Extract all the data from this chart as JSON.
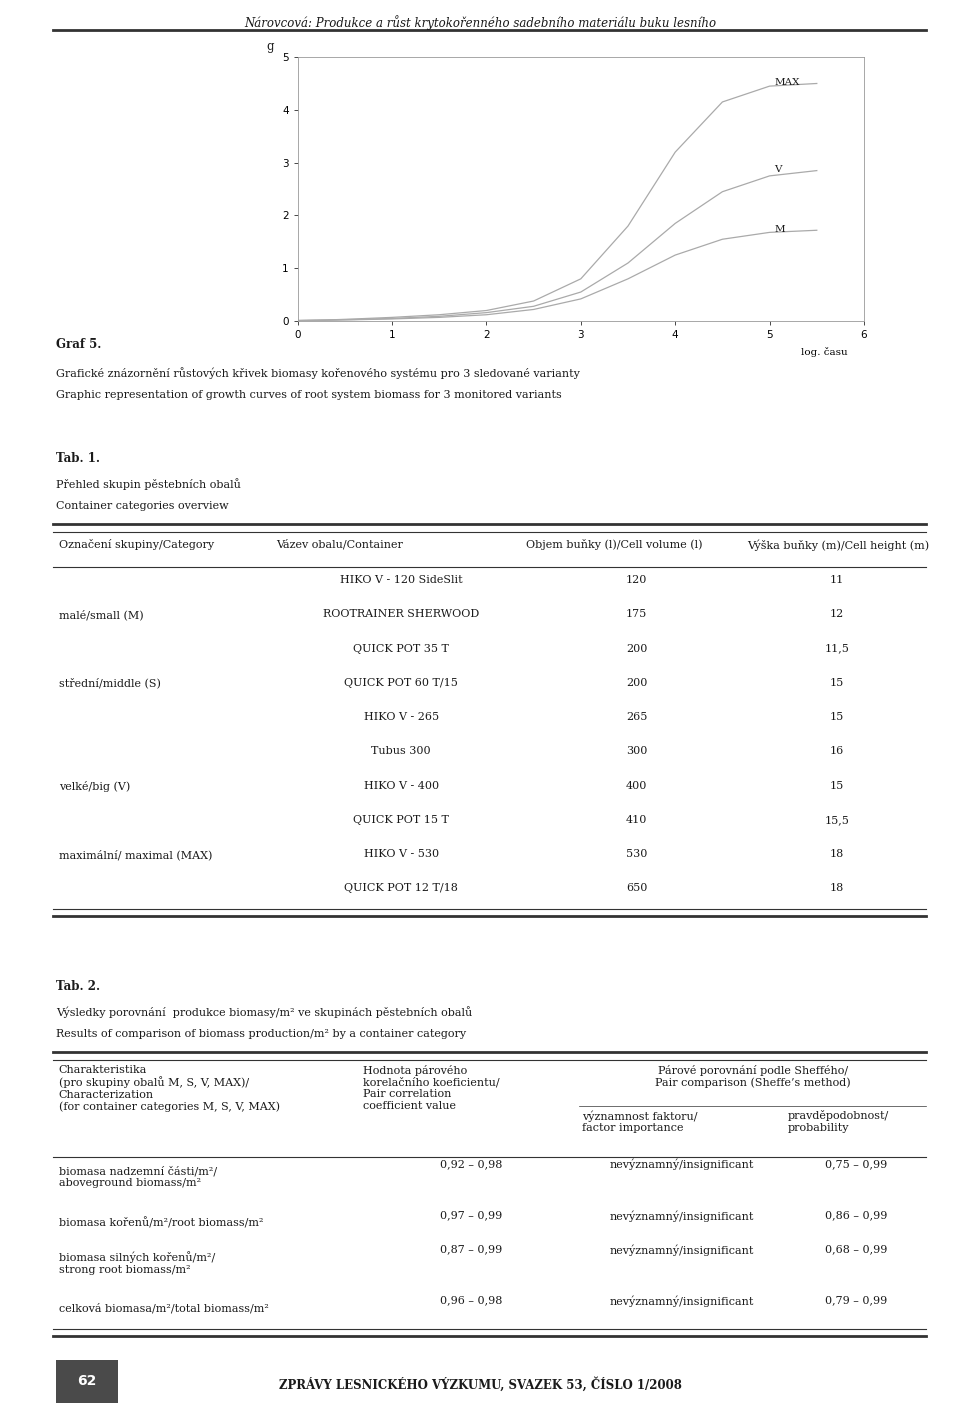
{
  "page_title": "Nárovcová: Produkce a růst krytokořenného sadebního materiálu buku lesního",
  "graf_title": "Graf 5.",
  "graf_caption_cz": "Grafické znázornění růstových křivek biomasy kořenového systému pro 3 sledované varianty",
  "graf_caption_en": "Graphic representation of growth curves of root system biomass for 3 monitored variants",
  "chart_ylabel": "g",
  "chart_xlabel": "log. času",
  "chart_yticks": [
    0,
    1,
    2,
    3,
    4,
    5
  ],
  "chart_xticks": [
    0,
    1,
    2,
    3,
    4,
    5,
    6
  ],
  "curve_MAX_x": [
    0.0,
    0.3,
    0.6,
    1.0,
    1.5,
    2.0,
    2.5,
    3.0,
    3.5,
    4.0,
    4.5,
    5.0,
    5.5
  ],
  "curve_MAX_y": [
    0.01,
    0.02,
    0.04,
    0.07,
    0.12,
    0.2,
    0.38,
    0.8,
    1.8,
    3.2,
    4.15,
    4.45,
    4.5
  ],
  "curve_V_x": [
    0.0,
    0.3,
    0.6,
    1.0,
    1.5,
    2.0,
    2.5,
    3.0,
    3.5,
    4.0,
    4.5,
    5.0,
    5.5
  ],
  "curve_V_y": [
    0.01,
    0.02,
    0.03,
    0.05,
    0.09,
    0.16,
    0.28,
    0.55,
    1.1,
    1.85,
    2.45,
    2.75,
    2.85
  ],
  "curve_M_x": [
    0.0,
    0.3,
    0.6,
    1.0,
    1.5,
    2.0,
    2.5,
    3.0,
    3.5,
    4.0,
    4.5,
    5.0,
    5.5
  ],
  "curve_M_y": [
    0.01,
    0.015,
    0.025,
    0.04,
    0.07,
    0.12,
    0.22,
    0.42,
    0.8,
    1.25,
    1.55,
    1.68,
    1.72
  ],
  "curve_color": "#aaaaaa",
  "tab1_title": "Tab. 1.",
  "tab1_caption_cz": "Přehled skupin pěstebních obalů",
  "tab1_caption_en": "Container categories overview",
  "tab1_col_headers": [
    "Označení skupiny/Category",
    "Vázev obalu/Container",
    "Objem buňky (l)/Cell volume (l)",
    "Výška buňky (m)/Cell height (m)"
  ],
  "tab1_rows": [
    [
      "",
      "HIKO V - 120 SideSlit",
      "120",
      "11"
    ],
    [
      "malé/small (M)",
      "ROOTRAINER SHERWOOD",
      "175",
      "12"
    ],
    [
      "",
      "QUICK POT 35 T",
      "200",
      "11,5"
    ],
    [
      "střední/middle (S)",
      "QUICK POT 60 T/15",
      "200",
      "15"
    ],
    [
      "",
      "HIKO V - 265",
      "265",
      "15"
    ],
    [
      "",
      "Tubus 300",
      "300",
      "16"
    ],
    [
      "velké/big (V)",
      "HIKO V - 400",
      "400",
      "15"
    ],
    [
      "",
      "QUICK POT 15 T",
      "410",
      "15,5"
    ],
    [
      "maximální/ maximal (MAX)",
      "HIKO V - 530",
      "530",
      "18"
    ],
    [
      "",
      "QUICK POT 12 T/18",
      "650",
      "18"
    ]
  ],
  "tab2_title": "Tab. 2.",
  "tab2_caption_cz": "Výsledky porovnání  produkce biomasy/m² ve skupinách pěstebních obalů",
  "tab2_caption_en": "Results of comparison of biomass production/m² by a container category",
  "tab2_rows": [
    [
      "biomasa nadzemní části/m²/\naboveground biomass/m²",
      "0,92 – 0,98",
      "nevýznamný/insignificant",
      "0,75 – 0,99"
    ],
    [
      "biomasa kořenů/m²/root biomass/m²",
      "0,97 – 0,99",
      "nevýznamný/insignificant",
      "0,86 – 0,99"
    ],
    [
      "biomasa silných kořenů/m²/\nstrong root biomass/m²",
      "0,87 – 0,99",
      "nevýznamný/insignificant",
      "0,68 – 0,99"
    ],
    [
      "celková biomasa/m²/total biomass/m²",
      "0,96 – 0,98",
      "nevýznamný/insignificant",
      "0,79 – 0,99"
    ]
  ],
  "footer_text": "ZPRÁVY LESNICKÉHO VÝZKUMU, SVAZEK 53, ČÍSLO 1/2008",
  "footer_page": "62",
  "bg_color": "#ffffff",
  "text_color": "#1a1a1a",
  "line_color": "#333333"
}
